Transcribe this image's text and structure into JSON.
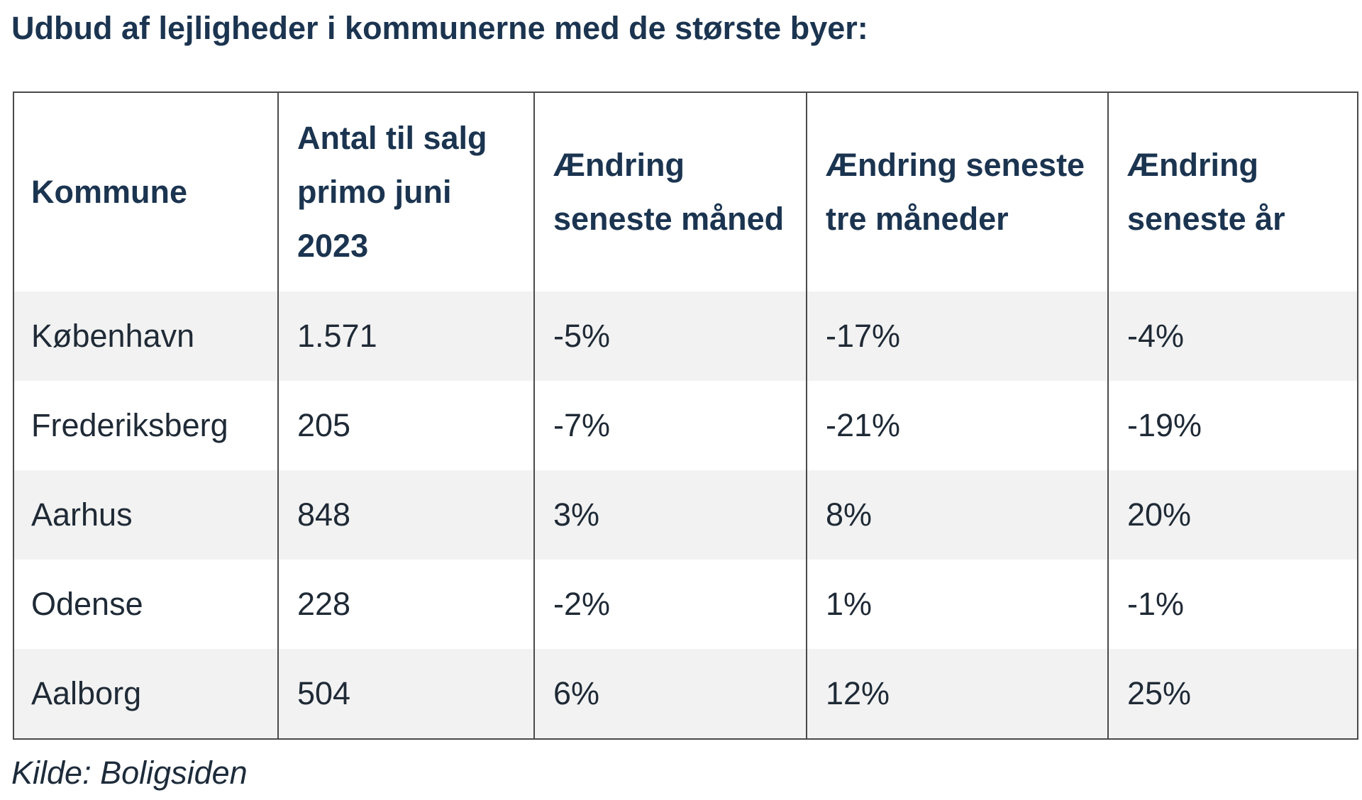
{
  "title": "Udbud af lejligheder i kommunerne med de største byer:",
  "table": {
    "headers": [
      "Kommune",
      "Antal til salg primo juni 2023",
      "Ændring seneste måned",
      "Ændring seneste tre måneder",
      "Ændring seneste år"
    ],
    "rows": [
      [
        "København",
        "1.571",
        "-5%",
        "-17%",
        "-4%"
      ],
      [
        "Frederiksberg",
        "205",
        "-7%",
        "-21%",
        "-19%"
      ],
      [
        "Aarhus",
        "848",
        "3%",
        "8%",
        "20%"
      ],
      [
        "Odense",
        "228",
        "-2%",
        "1%",
        "-1%"
      ],
      [
        "Aalborg",
        "504",
        "6%",
        "12%",
        "25%"
      ]
    ]
  },
  "source": "Kilde: Boligsiden",
  "colors": {
    "header_text": "#1b3450",
    "stripe": "#f2f2f2",
    "border": "#4a4a4a"
  }
}
